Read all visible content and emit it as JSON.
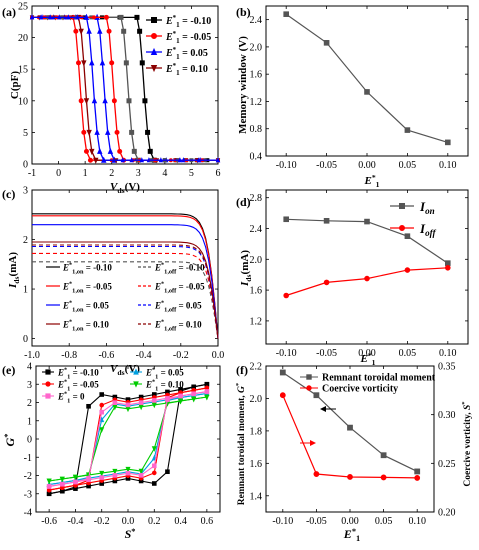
{
  "chart_data": [
    {
      "panel": "(a)",
      "type": "line",
      "xlabel": "V_ds(V)",
      "ylabel": "C(pF)",
      "xlim": [
        -1,
        6
      ],
      "ylim": [
        0,
        25
      ],
      "xticks": [
        "-1",
        "0",
        "1",
        "2",
        "3",
        "4",
        "5",
        "6"
      ],
      "yticks": [
        "0",
        "5",
        "10",
        "15",
        "20",
        "25"
      ],
      "legend_position": "top-right",
      "series": [
        {
          "name": "E*1 = -0.10",
          "color": "#000000",
          "marker": "square",
          "x": [
            -1,
            2.95,
            3.05,
            3.15,
            3.25,
            3.35,
            3.45,
            3.6,
            6
          ],
          "y": [
            23.2,
            23.2,
            21,
            16,
            10,
            5,
            2,
            0.6,
            0.6
          ]
        },
        {
          "name": "E*1 = -0.05",
          "color": "#ff0000",
          "marker": "circle",
          "x": [
            -1,
            0.55,
            0.65,
            0.75,
            0.85,
            0.95,
            1.05,
            1.2,
            6
          ],
          "y": [
            23.2,
            23.2,
            21,
            16,
            10,
            5,
            2,
            0.6,
            0.6
          ]
        },
        {
          "name": "E*1 = 0.05",
          "color": "#0000ff",
          "marker": "triangle",
          "x": [
            -1,
            1.45,
            1.55,
            1.65,
            1.75,
            1.85,
            1.95,
            2.1,
            6
          ],
          "y": [
            23.2,
            23.2,
            21,
            16,
            10,
            5,
            2,
            0.6,
            0.6
          ]
        },
        {
          "name": "E*1 = 0.10",
          "color": "#8b0000",
          "marker": "triangle-down",
          "x": [
            -1,
            0.75,
            0.85,
            0.95,
            1.05,
            1.15,
            1.25,
            1.4,
            6
          ],
          "y": [
            23.2,
            23.2,
            21,
            16,
            10,
            5,
            2,
            0.6,
            0.6
          ]
        },
        {
          "name": "",
          "color": "#555555",
          "marker": "square",
          "x": [
            -1,
            2.35,
            2.45,
            2.55,
            2.65,
            2.75,
            2.85,
            3.0,
            6
          ],
          "y": [
            23.2,
            23.2,
            21,
            16,
            10,
            5,
            2,
            0.6,
            0.6
          ]
        },
        {
          "name": "",
          "color": "#ff0000",
          "marker": "circle",
          "x": [
            -1,
            1.8,
            1.9,
            2.0,
            2.1,
            2.2,
            2.3,
            2.45,
            6
          ],
          "y": [
            23.2,
            23.2,
            21,
            16,
            10,
            5,
            2,
            0.6,
            0.6
          ]
        },
        {
          "name": "",
          "color": "#0000ff",
          "marker": "triangle",
          "x": [
            -1,
            1.05,
            1.15,
            1.25,
            1.35,
            1.45,
            1.55,
            1.7,
            6
          ],
          "y": [
            23.2,
            23.2,
            21,
            16,
            10,
            5,
            2,
            0.6,
            0.6
          ]
        }
      ]
    },
    {
      "panel": "(b)",
      "type": "line",
      "xlabel": "E*1",
      "ylabel": "Memory window (V)",
      "xlim": [
        -0.125,
        0.125
      ],
      "ylim": [
        0.4,
        2.6
      ],
      "xticks": [
        "-0.10",
        "-0.05",
        "0.00",
        "0.05",
        "0.10"
      ],
      "yticks": [
        "0.4",
        "0.8",
        "1.2",
        "1.6",
        "2.0",
        "2.4"
      ],
      "series": [
        {
          "name": "",
          "color": "#555555",
          "marker": "square",
          "x": [
            -0.1,
            -0.05,
            0.0,
            0.05,
            0.1
          ],
          "y": [
            2.48,
            2.06,
            1.34,
            0.78,
            0.6
          ]
        }
      ]
    },
    {
      "panel": "(c)",
      "type": "line",
      "xlabel": "V_ds(V)",
      "ylabel": "I_ds(mA)",
      "xlim": [
        -1.0,
        0.0
      ],
      "ylim": [
        -0.15,
        3.0
      ],
      "xticks": [
        "-1.0",
        "-0.8",
        "-0.6",
        "-0.4",
        "-0.2",
        "0.0"
      ],
      "yticks": [
        "0",
        "1",
        "2",
        "3"
      ],
      "legend": [
        "E*1,on = -0.10",
        "E*1,off = -0.10",
        "E*1,on = -0.05",
        "E*1,off = -0.05",
        "E*1,on = 0.05",
        "E*1,off = 0.05",
        "E*1,on = 0.10",
        "E*1,off = 0.10"
      ],
      "series": [
        {
          "name": "E*1,on = -0.10",
          "color": "#000000",
          "dash": false,
          "sat": 2.52
        },
        {
          "name": "E*1,off = -0.10",
          "color": "#555555",
          "dash": true,
          "sat": 1.55
        },
        {
          "name": "E*1,on = -0.05",
          "color": "#ff0000",
          "dash": false,
          "sat": 2.48
        },
        {
          "name": "E*1,off = -0.05",
          "color": "#ff0000",
          "dash": true,
          "sat": 1.72
        },
        {
          "name": "E*1,on = 0.05",
          "color": "#0000ff",
          "dash": false,
          "sat": 2.3
        },
        {
          "name": "E*1,off = 0.05",
          "color": "#0000ff",
          "dash": true,
          "sat": 1.86
        },
        {
          "name": "E*1,on = 0.10",
          "color": "#8b0000",
          "dash": false,
          "sat": 1.95
        },
        {
          "name": "E*1,off = 0.10",
          "color": "#8b0000",
          "dash": true,
          "sat": 1.89
        }
      ]
    },
    {
      "panel": "(d)",
      "type": "line",
      "xlabel": "E*1",
      "ylabel": "I_ds(mA)",
      "xlim": [
        -0.125,
        0.125
      ],
      "ylim": [
        0.9,
        2.9
      ],
      "xticks": [
        "-0.10",
        "-0.05",
        "0.00",
        "0.05",
        "0.10"
      ],
      "yticks": [
        "1.2",
        "1.6",
        "2.0",
        "2.4",
        "2.8"
      ],
      "legend_position": "top-right",
      "series": [
        {
          "name": "I_on",
          "color": "#555555",
          "marker": "square",
          "x": [
            -0.1,
            -0.05,
            0.0,
            0.05,
            0.1
          ],
          "y": [
            2.52,
            2.5,
            2.49,
            2.3,
            1.95
          ]
        },
        {
          "name": "I_off",
          "color": "#ff0000",
          "marker": "circle",
          "x": [
            -0.1,
            -0.05,
            0.0,
            0.05,
            0.1
          ],
          "y": [
            1.53,
            1.7,
            1.75,
            1.86,
            1.89
          ]
        }
      ]
    },
    {
      "panel": "(e)",
      "type": "line",
      "xlabel": "S*",
      "ylabel": "G*",
      "xlim": [
        -0.7,
        0.7
      ],
      "ylim": [
        -4,
        4
      ],
      "xticks": [
        "-0.6",
        "-0.4",
        "-0.2",
        "0.0",
        "0.2",
        "0.4",
        "0.6"
      ],
      "yticks": [
        "-4",
        "-3",
        "-2",
        "-1",
        "0",
        "1",
        "2",
        "3",
        "4"
      ],
      "series": [
        {
          "name": "E*1 = -0.10",
          "color": "#000000",
          "marker": "square",
          "amp": 3.0,
          "sc": 0.33
        },
        {
          "name": "E*1 = 0.05",
          "color": "#00a0e0",
          "marker": "triangle",
          "amp": 2.5,
          "sc": 0.22
        },
        {
          "name": "E*1 = -0.05",
          "color": "#ff0000",
          "marker": "circle",
          "amp": 2.8,
          "sc": 0.24
        },
        {
          "name": "E*1 = 0.10",
          "color": "#00cc00",
          "marker": "triangle-down",
          "amp": 2.3,
          "sc": 0.21
        },
        {
          "name": "E*1 = 0",
          "color": "#ff66cc",
          "marker": "square",
          "amp": 2.6,
          "sc": 0.23
        }
      ]
    },
    {
      "panel": "(f)",
      "type": "line",
      "xlabel": "E*1",
      "ylabel": "Remnant toroidal moment, G*",
      "ylabel_right": "Coercive vorticity, S*",
      "xlim": [
        -0.125,
        0.125
      ],
      "ylim": [
        1.3,
        2.2
      ],
      "ylim_right": [
        0.2,
        0.35
      ],
      "xticks": [
        "-0.10",
        "-0.05",
        "0.00",
        "0.05",
        "0.10"
      ],
      "yticks": [
        "1.4",
        "1.6",
        "1.8",
        "2.0",
        "2.2"
      ],
      "yticks_right": [
        "0.20",
        "0.25",
        "0.30",
        "0.35"
      ],
      "legend_position": "top-right",
      "series": [
        {
          "name": "Remnant toroidal moment",
          "color": "#555555",
          "marker": "square",
          "axis": "left",
          "x": [
            -0.1,
            -0.05,
            0.0,
            0.05,
            0.1
          ],
          "y": [
            2.16,
            2.02,
            1.82,
            1.65,
            1.55
          ]
        },
        {
          "name": "Coercive vorticity",
          "color": "#ff0000",
          "marker": "circle",
          "axis": "right",
          "x": [
            -0.1,
            -0.05,
            0.0,
            0.05,
            0.1
          ],
          "y": [
            0.32,
            0.239,
            0.236,
            0.2355,
            0.235
          ]
        }
      ]
    }
  ]
}
